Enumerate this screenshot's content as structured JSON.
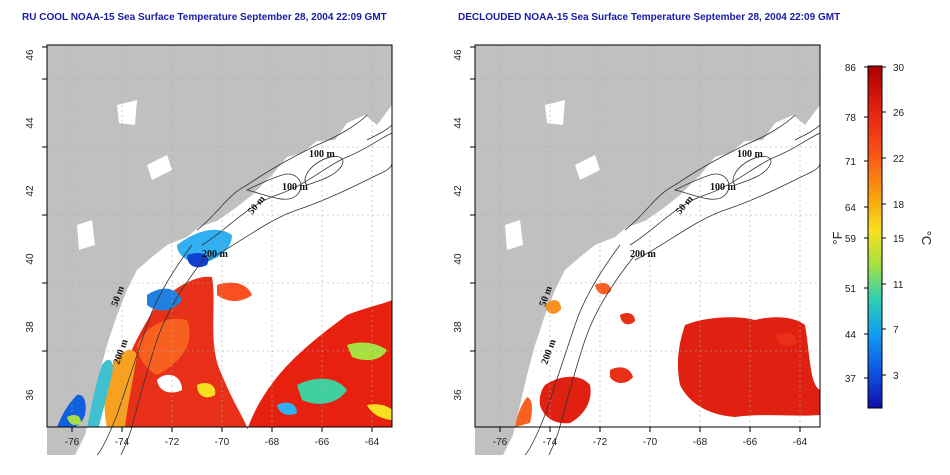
{
  "panels": [
    {
      "title": "RU COOL NOAA-15 Sea Surface Temperature September 28, 2004 22:09 GMT",
      "x_ticks": [
        "-76",
        "-74",
        "-72",
        "-70",
        "-68",
        "-66",
        "-64"
      ],
      "y_ticks": [
        "36",
        "38",
        "40",
        "42",
        "44",
        "46"
      ],
      "contour_labels": [
        "100 m",
        "100 m",
        "50 m",
        "200 m",
        "50 m",
        "200 m"
      ]
    },
    {
      "title": "DECLOUDED NOAA-15 Sea Surface Temperature September 28, 2004 22:09 GMT",
      "x_ticks": [
        "-76",
        "-74",
        "-72",
        "-70",
        "-68",
        "-66",
        "-64"
      ],
      "y_ticks": [
        "36",
        "38",
        "40",
        "42",
        "44",
        "46"
      ],
      "contour_labels": [
        "100 m",
        "100 m",
        "50 m",
        "200 m",
        "50 m",
        "200 m"
      ]
    }
  ],
  "colorbar": {
    "fahrenheit_ticks": [
      "86",
      "78",
      "71",
      "64",
      "59",
      "51",
      "44",
      "37"
    ],
    "celsius_ticks": [
      "30",
      "26",
      "22",
      "18",
      "15",
      "11",
      "7",
      "3"
    ],
    "left_unit": "°F",
    "right_unit": "°C",
    "gradient_colors": [
      "#a80000",
      "#e02010",
      "#f85018",
      "#f8a010",
      "#f8e020",
      "#a8e040",
      "#30d0b0",
      "#10a0f0",
      "#1050e0",
      "#1010a8"
    ]
  },
  "colors": {
    "land": "#c0c0c0",
    "title": "#1a1aa8",
    "grid": "#aaaaaa"
  }
}
